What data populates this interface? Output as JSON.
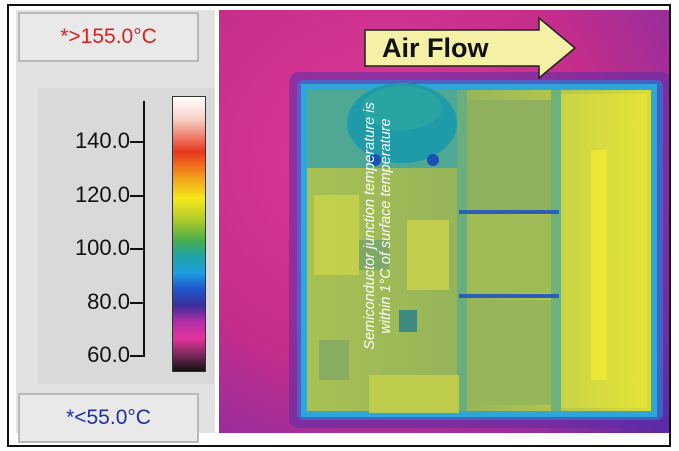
{
  "readouts": {
    "max": "*>155.0°C",
    "min": "*<55.0°C"
  },
  "scale": {
    "labels": [
      "140.0",
      "120.0",
      "100.0",
      "80.0",
      "60.0"
    ],
    "values": [
      140,
      120,
      100,
      80,
      60
    ]
  },
  "thermal_image": {
    "airflow_label": "Air Flow",
    "note_line1": "Semiconductor junction temperature is",
    "note_line2": "within 1°C of surface temperature"
  },
  "colors": {
    "background_magenta": "#cc2f8d",
    "board_yellow_green": "#b7c94b",
    "board_edge_blue": "#2f8fe0",
    "arrow_fill": "#f4f0a6",
    "max_text": "#d91f1f",
    "min_text": "#1e2f9c"
  }
}
